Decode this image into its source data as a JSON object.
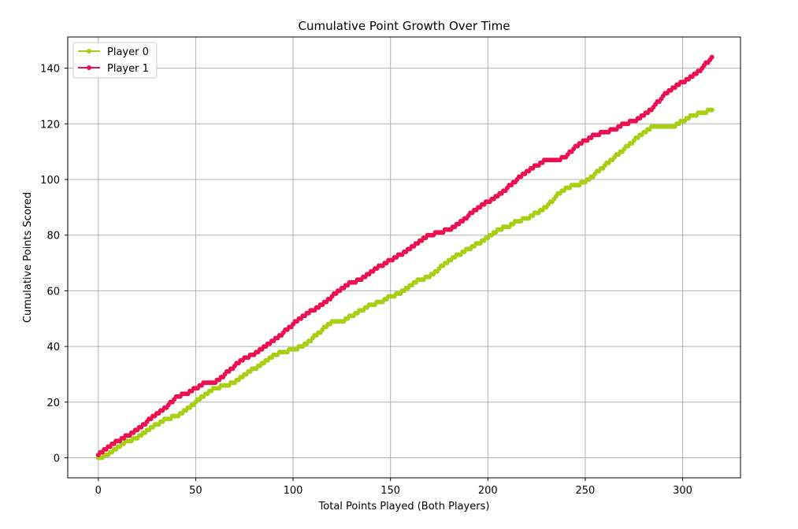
{
  "chart_data": {
    "type": "line",
    "title": "Cumulative Point Growth Over Time",
    "xlabel": "Total Points Played (Both Players)",
    "ylabel": "Cumulative Points Scored",
    "xlim": [
      -15.7,
      329.7
    ],
    "ylim": [
      -7.2,
      151.2
    ],
    "x_ticks": [
      0,
      50,
      100,
      150,
      200,
      250,
      300
    ],
    "y_ticks": [
      0,
      20,
      40,
      60,
      80,
      100,
      120,
      140
    ],
    "grid": true,
    "legend": "top-left",
    "series": [
      {
        "name": "Player 0",
        "color": "#a8cf14",
        "points": [
          [
            0,
            0
          ],
          [
            5,
            1
          ],
          [
            10,
            4
          ],
          [
            15,
            6
          ],
          [
            20,
            7
          ],
          [
            25,
            10
          ],
          [
            30,
            12
          ],
          [
            35,
            14
          ],
          [
            40,
            15
          ],
          [
            45,
            17
          ],
          [
            50,
            20
          ],
          [
            55,
            23
          ],
          [
            60,
            25
          ],
          [
            65,
            26
          ],
          [
            70,
            27
          ],
          [
            75,
            30
          ],
          [
            80,
            32
          ],
          [
            85,
            34
          ],
          [
            90,
            37
          ],
          [
            95,
            38
          ],
          [
            100,
            39
          ],
          [
            105,
            40
          ],
          [
            110,
            43
          ],
          [
            115,
            46
          ],
          [
            120,
            49
          ],
          [
            125,
            49
          ],
          [
            130,
            51
          ],
          [
            135,
            53
          ],
          [
            140,
            55
          ],
          [
            145,
            56
          ],
          [
            150,
            58
          ],
          [
            155,
            59
          ],
          [
            160,
            62
          ],
          [
            165,
            64
          ],
          [
            170,
            65
          ],
          [
            175,
            68
          ],
          [
            180,
            71
          ],
          [
            185,
            73
          ],
          [
            190,
            75
          ],
          [
            195,
            77
          ],
          [
            200,
            79
          ],
          [
            205,
            82
          ],
          [
            210,
            83
          ],
          [
            215,
            85
          ],
          [
            220,
            86
          ],
          [
            225,
            88
          ],
          [
            230,
            90
          ],
          [
            235,
            94
          ],
          [
            240,
            97
          ],
          [
            245,
            98
          ],
          [
            250,
            99
          ],
          [
            255,
            102
          ],
          [
            260,
            105
          ],
          [
            265,
            108
          ],
          [
            270,
            111
          ],
          [
            275,
            114
          ],
          [
            280,
            117
          ],
          [
            285,
            119
          ],
          [
            290,
            119
          ],
          [
            295,
            119
          ],
          [
            300,
            121
          ],
          [
            305,
            123
          ],
          [
            310,
            124
          ],
          [
            315,
            125
          ]
        ]
      },
      {
        "name": "Player 1",
        "color": "#ec1052",
        "points": [
          [
            0,
            1
          ],
          [
            5,
            4
          ],
          [
            10,
            6
          ],
          [
            15,
            8
          ],
          [
            20,
            10
          ],
          [
            25,
            13
          ],
          [
            30,
            16
          ],
          [
            35,
            18
          ],
          [
            40,
            22
          ],
          [
            45,
            23
          ],
          [
            50,
            25
          ],
          [
            55,
            27
          ],
          [
            60,
            27
          ],
          [
            65,
            30
          ],
          [
            70,
            33
          ],
          [
            75,
            36
          ],
          [
            80,
            37
          ],
          [
            85,
            40
          ],
          [
            90,
            42
          ],
          [
            95,
            45
          ],
          [
            100,
            48
          ],
          [
            105,
            51
          ],
          [
            110,
            53
          ],
          [
            115,
            55
          ],
          [
            120,
            58
          ],
          [
            125,
            61
          ],
          [
            130,
            63
          ],
          [
            135,
            64
          ],
          [
            140,
            67
          ],
          [
            145,
            69
          ],
          [
            150,
            71
          ],
          [
            155,
            73
          ],
          [
            160,
            75
          ],
          [
            165,
            78
          ],
          [
            170,
            80
          ],
          [
            175,
            81
          ],
          [
            180,
            82
          ],
          [
            185,
            84
          ],
          [
            190,
            87
          ],
          [
            195,
            90
          ],
          [
            200,
            92
          ],
          [
            205,
            94
          ],
          [
            210,
            97
          ],
          [
            215,
            100
          ],
          [
            220,
            103
          ],
          [
            225,
            105
          ],
          [
            230,
            107
          ],
          [
            235,
            107
          ],
          [
            240,
            108
          ],
          [
            245,
            112
          ],
          [
            250,
            114
          ],
          [
            255,
            116
          ],
          [
            260,
            117
          ],
          [
            265,
            118
          ],
          [
            270,
            120
          ],
          [
            275,
            121
          ],
          [
            280,
            123
          ],
          [
            285,
            126
          ],
          [
            290,
            130
          ],
          [
            295,
            133
          ],
          [
            300,
            135
          ],
          [
            305,
            137
          ],
          [
            310,
            140
          ],
          [
            315,
            144
          ]
        ]
      }
    ]
  }
}
